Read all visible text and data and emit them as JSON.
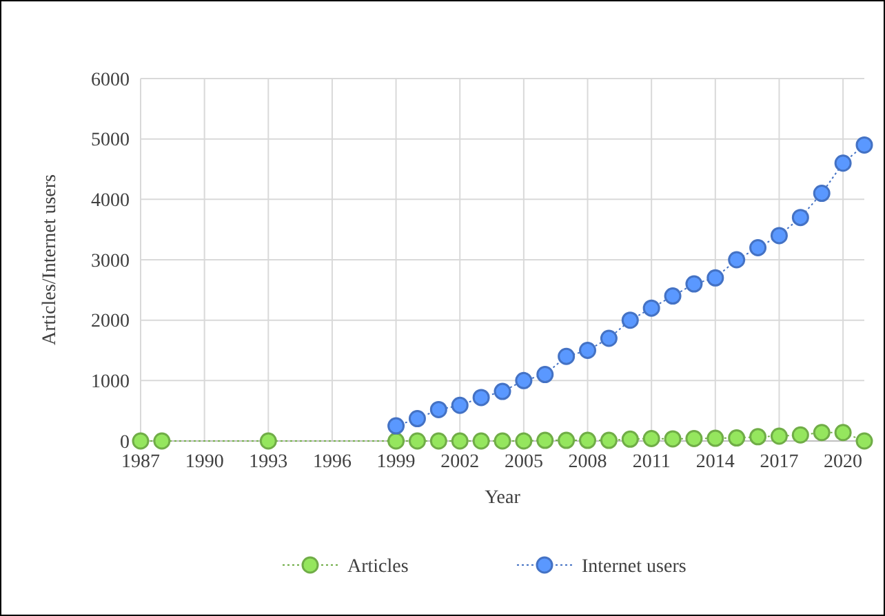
{
  "chart_data": {
    "type": "line",
    "xlabel": "Year",
    "ylabel": "Articles/Internet users",
    "xlim": [
      1987,
      2021
    ],
    "xticks": [
      1987,
      1990,
      1993,
      1996,
      1999,
      2002,
      2005,
      2008,
      2011,
      2014,
      2017,
      2020
    ],
    "ylim": [
      0,
      6000
    ],
    "yticks": [
      0,
      1000,
      2000,
      3000,
      4000,
      5000,
      6000
    ],
    "grid": true,
    "legend": "bottom",
    "marker": "circle",
    "line_style": "dotted",
    "series": [
      {
        "name": "Articles",
        "color": "#70ad47",
        "x": [
          1987,
          1988,
          1993,
          1999,
          2000,
          2001,
          2002,
          2003,
          2004,
          2005,
          2006,
          2007,
          2008,
          2009,
          2010,
          2011,
          2012,
          2013,
          2014,
          2015,
          2016,
          2017,
          2018,
          2019,
          2020,
          2021
        ],
        "values": [
          0,
          0,
          0,
          0,
          0,
          0,
          0,
          0,
          0,
          0,
          10,
          10,
          10,
          10,
          30,
          40,
          35,
          40,
          45,
          50,
          70,
          80,
          100,
          140,
          140,
          0
        ]
      },
      {
        "name": "Internet users",
        "color": "#4472c4",
        "x": [
          1999,
          2000,
          2001,
          2002,
          2003,
          2004,
          2005,
          2006,
          2007,
          2008,
          2009,
          2010,
          2011,
          2012,
          2013,
          2014,
          2015,
          2016,
          2017,
          2018,
          2019,
          2020,
          2021
        ],
        "values": [
          250,
          370,
          520,
          590,
          720,
          820,
          1000,
          1100,
          1400,
          1500,
          1700,
          2000,
          2200,
          2400,
          2600,
          2700,
          3000,
          3200,
          3400,
          3700,
          4100,
          4600,
          4900
        ]
      }
    ]
  }
}
